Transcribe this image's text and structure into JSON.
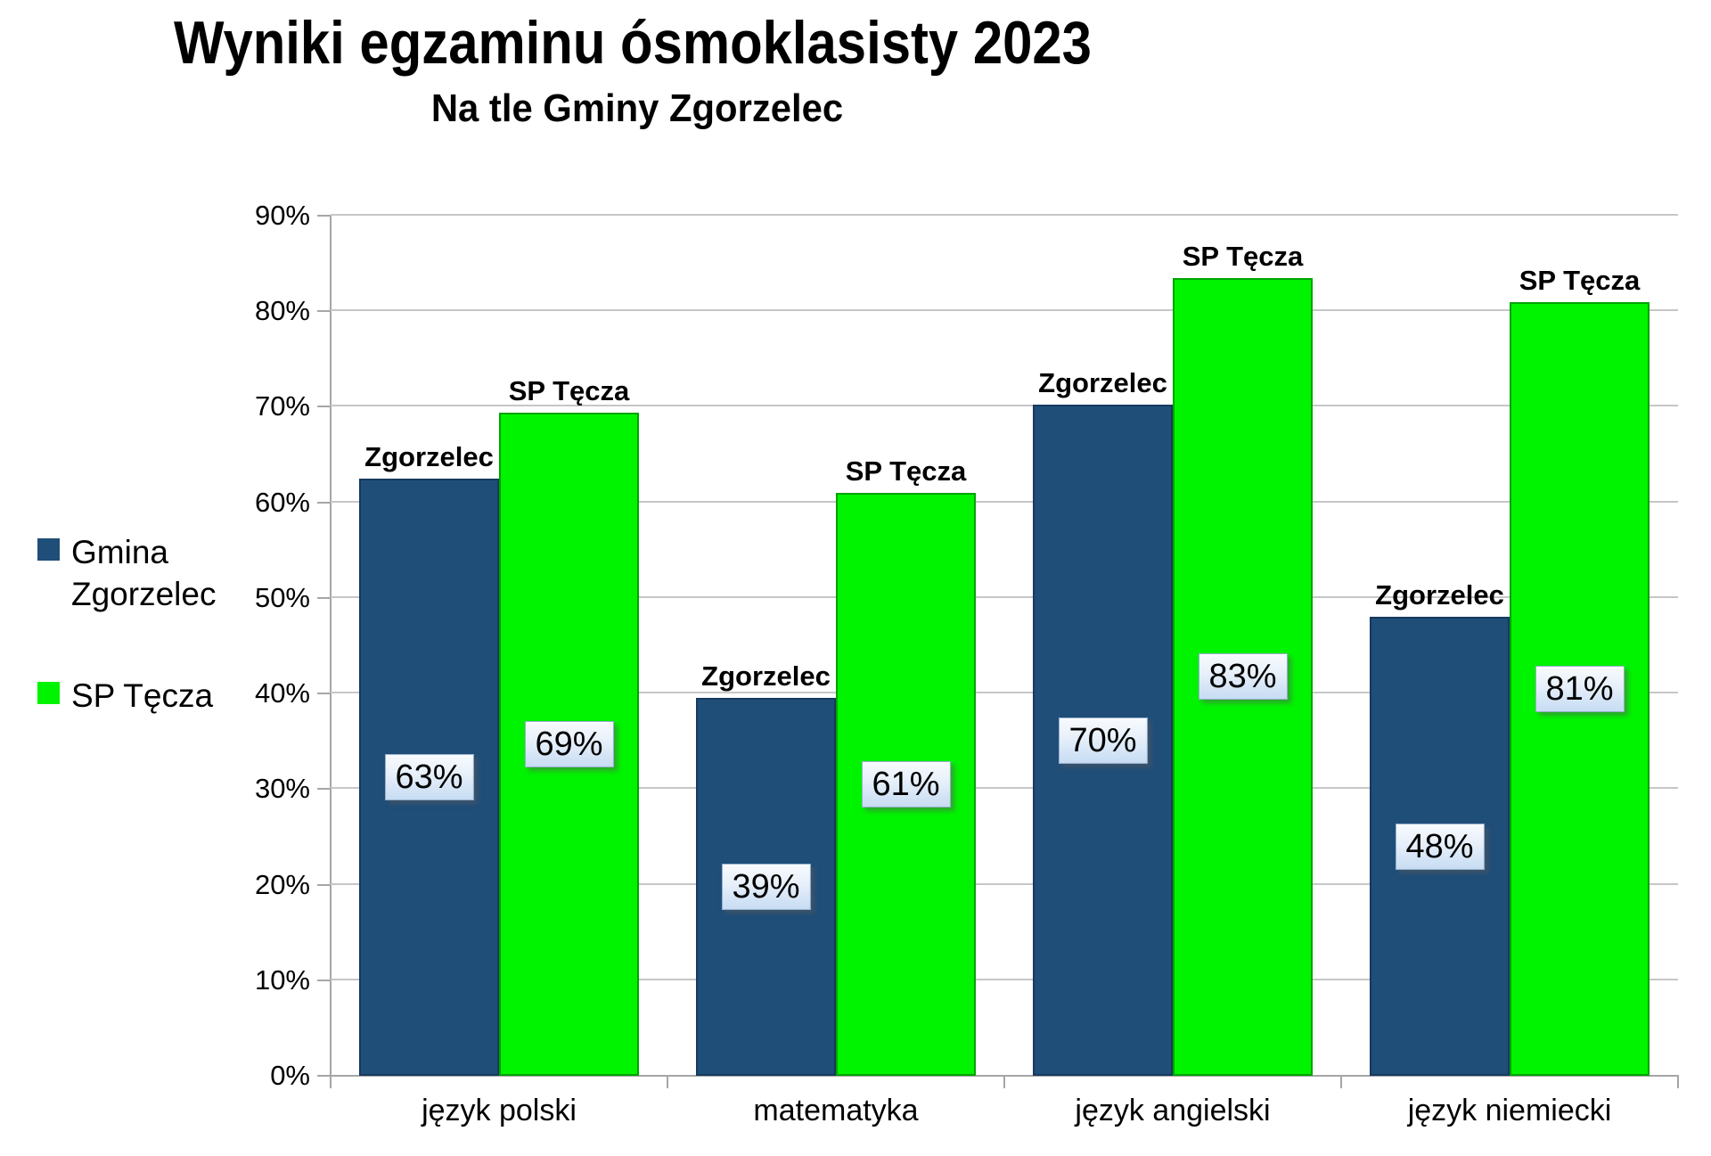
{
  "title": "Wyniki egzaminu ósmoklasisty 2023",
  "subtitle": "Na tle Gminy Zgorzelec",
  "legend": {
    "position": "left",
    "items": [
      {
        "label": "Gmina Zgorzelec",
        "color": "#1F4E79"
      },
      {
        "label": "SP Tęcza",
        "color": "#00F400"
      }
    ]
  },
  "chart_data": {
    "type": "bar",
    "title": "Wyniki egzaminu ósmoklasisty 2023",
    "subtitle": "Na tle Gminy Zgorzelec",
    "categories": [
      "język polski",
      "matematyka",
      "język angielski",
      "język niemiecki"
    ],
    "series": [
      {
        "name": "Gmina Zgorzelec",
        "color": "#1F4E79",
        "border_color": "#163A5F",
        "bar_top_label": "Zgorzelec",
        "values": [
          63,
          39,
          70,
          48
        ],
        "value_labels": [
          "63%",
          "39%",
          "70%",
          "48%"
        ],
        "bar_heights_pct": [
          62.5,
          39.5,
          70.2,
          48.0
        ]
      },
      {
        "name": "SP Tęcza",
        "color": "#00F400",
        "border_color": "#00A300",
        "bar_top_label": "SP Tęcza",
        "values": [
          69,
          61,
          83,
          81
        ],
        "value_labels": [
          "69%",
          "61%",
          "83%",
          "81%"
        ],
        "bar_heights_pct": [
          69.4,
          61.0,
          83.5,
          81.0
        ]
      }
    ],
    "xlabel": "",
    "ylabel": "",
    "ylim": [
      0,
      90
    ],
    "ytick_step": 10,
    "yticks": [
      "90%",
      "80%",
      "70%",
      "60%",
      "50%",
      "40%",
      "30%",
      "20%",
      "10%",
      "0%"
    ],
    "grid": true,
    "legend_position": "left",
    "gridline_color": "#c6c6c6",
    "axis_color": "#a6a6a6"
  }
}
